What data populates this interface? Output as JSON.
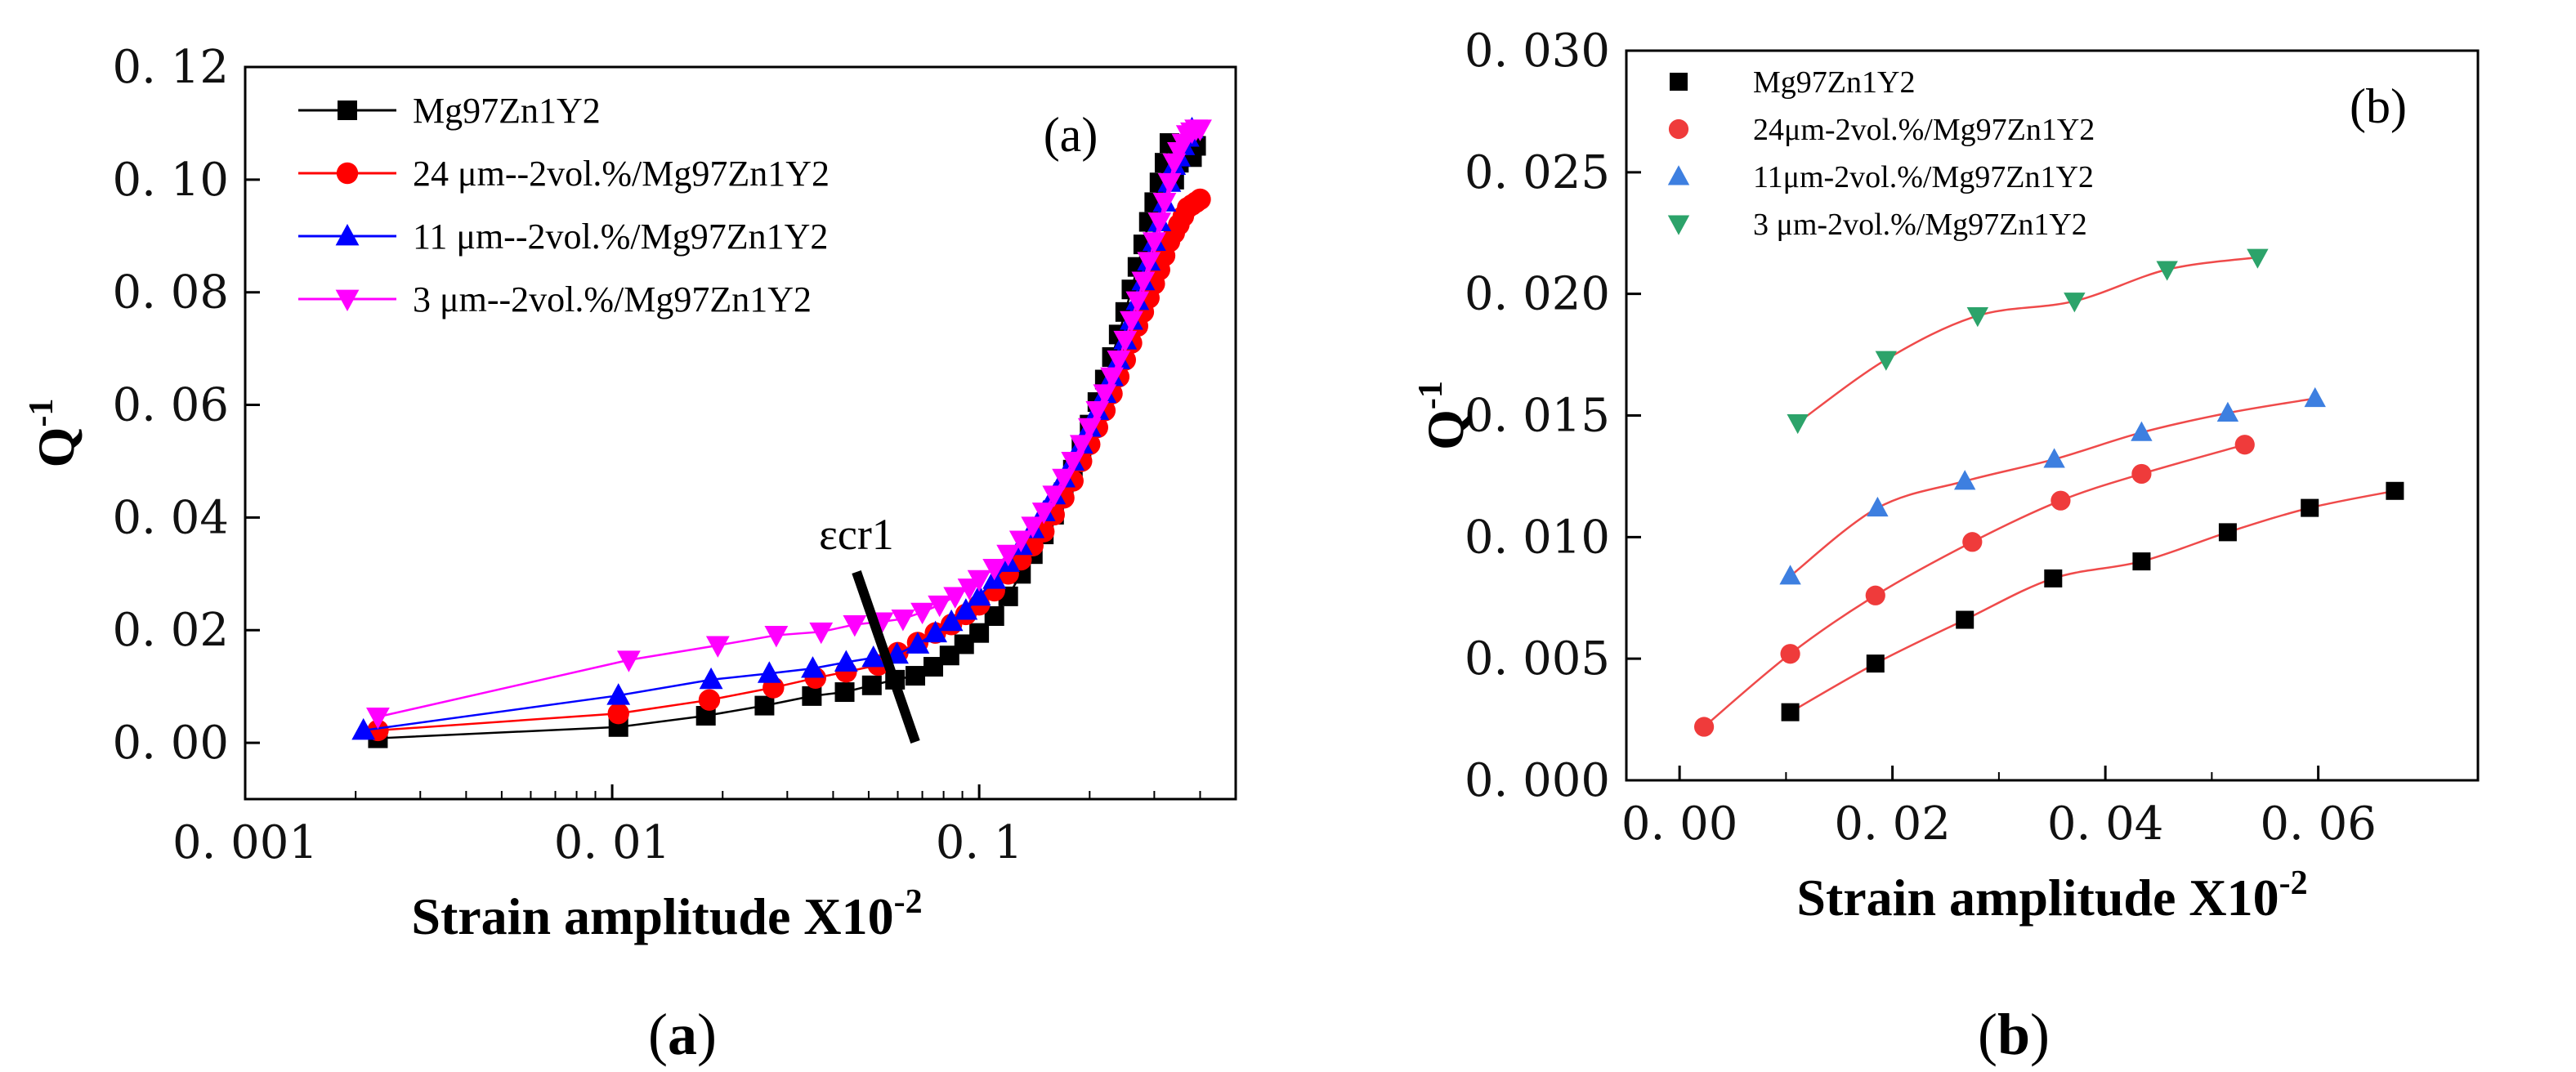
{
  "chart_data": [
    {
      "type": "line",
      "panel_label": "(a)",
      "caption_parts": [
        "(",
        "a",
        ")"
      ],
      "xlabel": "Strain amplitude X10",
      "xlabel_sup": "-2",
      "ylabel": "Q",
      "ylabel_sup": "-1",
      "xscale": "log",
      "xlim": [
        0.001,
        0.5
      ],
      "ylim": [
        -0.01,
        0.12
      ],
      "x_ticks": [
        0.001,
        0.01,
        0.1
      ],
      "x_tick_labels": [
        "0. 001",
        "0. 01",
        "0. 1"
      ],
      "y_ticks": [
        0.0,
        0.02,
        0.04,
        0.06,
        0.08,
        0.1,
        0.12
      ],
      "y_tick_labels": [
        "0. 00",
        "0. 02",
        "0. 04",
        "0. 06",
        "0. 08",
        "0. 10",
        "0. 12"
      ],
      "legend_position": "top-left",
      "annotation": {
        "text": "εcr1",
        "x": 0.058,
        "y": 0.02
      },
      "series": [
        {
          "name": "Mg97Zn1Y2",
          "color": "#000000",
          "marker": "square",
          "x": [
            0.0023,
            0.0104,
            0.018,
            0.026,
            0.035,
            0.043,
            0.051,
            0.059,
            0.067,
            0.075,
            0.083,
            0.091,
            0.1,
            0.11,
            0.12,
            0.13,
            0.14,
            0.15,
            0.16,
            0.17,
            0.18,
            0.19,
            0.2,
            0.21,
            0.22,
            0.23,
            0.24,
            0.25,
            0.26,
            0.27,
            0.28,
            0.29,
            0.3,
            0.31,
            0.32,
            0.33,
            0.34,
            0.35,
            0.36,
            0.37,
            0.38,
            0.39
          ],
          "y": [
            0.0008,
            0.0028,
            0.0048,
            0.0066,
            0.0083,
            0.009,
            0.0102,
            0.0112,
            0.0119,
            0.0135,
            0.0155,
            0.0175,
            0.0195,
            0.0225,
            0.026,
            0.03,
            0.0335,
            0.037,
            0.0405,
            0.0445,
            0.0485,
            0.0525,
            0.0565,
            0.0605,
            0.0645,
            0.0685,
            0.0725,
            0.0765,
            0.0805,
            0.0845,
            0.0885,
            0.0925,
            0.096,
            0.0995,
            0.103,
            0.1065,
            0.1,
            0.103,
            0.106,
            0.1055,
            0.104,
            0.106
          ]
        },
        {
          "name": "24 μm--2vol.%/Mg97Zn1Y2",
          "color": "#ff0000",
          "marker": "circle",
          "x": [
            0.0023,
            0.0104,
            0.0184,
            0.0275,
            0.0358,
            0.0434,
            0.0531,
            0.06,
            0.068,
            0.076,
            0.084,
            0.092,
            0.1,
            0.11,
            0.12,
            0.13,
            0.14,
            0.15,
            0.16,
            0.17,
            0.18,
            0.19,
            0.2,
            0.21,
            0.22,
            0.23,
            0.24,
            0.25,
            0.26,
            0.27,
            0.28,
            0.29,
            0.3,
            0.31,
            0.32,
            0.33,
            0.34,
            0.35,
            0.36,
            0.37,
            0.38,
            0.39,
            0.4
          ],
          "y": [
            0.0022,
            0.0052,
            0.0076,
            0.0098,
            0.0115,
            0.0126,
            0.0138,
            0.016,
            0.0178,
            0.0195,
            0.021,
            0.0228,
            0.0245,
            0.027,
            0.03,
            0.0325,
            0.035,
            0.0375,
            0.0405,
            0.0435,
            0.0465,
            0.05,
            0.053,
            0.056,
            0.059,
            0.062,
            0.065,
            0.068,
            0.071,
            0.074,
            0.0765,
            0.079,
            0.0815,
            0.084,
            0.0865,
            0.089,
            0.0905,
            0.092,
            0.0935,
            0.095,
            0.0955,
            0.096,
            0.0965
          ]
        },
        {
          "name": "11 μm--2vol.%/Mg97Zn1Y2",
          "color": "#0000ff",
          "marker": "triangle-up",
          "x": [
            0.0021,
            0.0104,
            0.0186,
            0.0268,
            0.0352,
            0.0434,
            0.0515,
            0.0597,
            0.068,
            0.076,
            0.084,
            0.092,
            0.1,
            0.11,
            0.12,
            0.13,
            0.14,
            0.15,
            0.16,
            0.17,
            0.18,
            0.19,
            0.2,
            0.21,
            0.22,
            0.23,
            0.24,
            0.25,
            0.26,
            0.27,
            0.28,
            0.29,
            0.3,
            0.31,
            0.32,
            0.33,
            0.34,
            0.35,
            0.36,
            0.37,
            0.38
          ],
          "y": [
            0.0022,
            0.0084,
            0.0112,
            0.0123,
            0.0132,
            0.0143,
            0.0151,
            0.0157,
            0.0175,
            0.0195,
            0.0215,
            0.0235,
            0.026,
            0.029,
            0.032,
            0.035,
            0.038,
            0.041,
            0.044,
            0.047,
            0.05,
            0.053,
            0.056,
            0.059,
            0.062,
            0.065,
            0.068,
            0.0715,
            0.075,
            0.0785,
            0.082,
            0.0855,
            0.089,
            0.0925,
            0.096,
            0.0995,
            0.1025,
            0.104,
            0.106,
            0.1075,
            0.109
          ]
        },
        {
          "name": "3   μm--2vol.%/Mg97Zn1Y2",
          "color": "#ff00ff",
          "marker": "triangle-down",
          "x": [
            0.0023,
            0.0111,
            0.0194,
            0.028,
            0.0371,
            0.0458,
            0.0543,
            0.062,
            0.07,
            0.078,
            0.086,
            0.094,
            0.1,
            0.11,
            0.12,
            0.13,
            0.14,
            0.15,
            0.16,
            0.17,
            0.18,
            0.19,
            0.2,
            0.21,
            0.22,
            0.23,
            0.24,
            0.25,
            0.26,
            0.27,
            0.28,
            0.29,
            0.3,
            0.31,
            0.32,
            0.33,
            0.34,
            0.35,
            0.36,
            0.37,
            0.38,
            0.39,
            0.4
          ],
          "y": [
            0.0046,
            0.0147,
            0.0173,
            0.0191,
            0.0197,
            0.021,
            0.0215,
            0.022,
            0.0232,
            0.0245,
            0.026,
            0.0275,
            0.029,
            0.031,
            0.0335,
            0.036,
            0.0385,
            0.041,
            0.044,
            0.047,
            0.05,
            0.053,
            0.056,
            0.059,
            0.062,
            0.065,
            0.068,
            0.0715,
            0.075,
            0.0785,
            0.082,
            0.0855,
            0.089,
            0.0925,
            0.096,
            0.0995,
            0.103,
            0.105,
            0.1065,
            0.108,
            0.1085,
            0.109,
            0.109
          ]
        }
      ]
    },
    {
      "type": "scatter",
      "panel_label": "(b)",
      "caption_parts": [
        "(",
        "b",
        ")"
      ],
      "xlabel": "Strain amplitude X10",
      "xlabel_sup": "-2",
      "ylabel": "Q",
      "ylabel_sup": "-1",
      "xlim": [
        -0.005,
        0.075
      ],
      "ylim": [
        0.0,
        0.03
      ],
      "x_ticks": [
        0.0,
        0.02,
        0.04,
        0.06
      ],
      "x_tick_labels": [
        "0. 00",
        "0. 02",
        "0. 04",
        "0. 06"
      ],
      "y_ticks": [
        0.0,
        0.005,
        0.01,
        0.015,
        0.02,
        0.025,
        0.03
      ],
      "y_tick_labels": [
        "0. 000",
        "0. 005",
        "0. 010",
        "0. 015",
        "0. 020",
        "0. 025",
        "0. 030"
      ],
      "legend_position": "top-left",
      "series": [
        {
          "name": "Mg97Zn1Y2",
          "color": "#000000",
          "marker": "square",
          "x": [
            0.0104,
            0.0184,
            0.0268,
            0.0351,
            0.0434,
            0.0515,
            0.0592,
            0.0672
          ],
          "y": [
            0.0028,
            0.0048,
            0.0066,
            0.0083,
            0.009,
            0.0102,
            0.0112,
            0.0119
          ]
        },
        {
          "name": "24μm-2vol.%/Mg97Zn1Y2",
          "color": "#ef3b3b",
          "marker": "circle",
          "x": [
            0.0023,
            0.0104,
            0.0184,
            0.0275,
            0.0358,
            0.0434,
            0.0531
          ],
          "y": [
            0.0022,
            0.0052,
            0.0076,
            0.0098,
            0.0115,
            0.0126,
            0.0138
          ]
        },
        {
          "name": "11μm-2vol.%/Mg97Zn1Y2",
          "color": "#3d7fe0",
          "marker": "triangle-up",
          "x": [
            0.0104,
            0.0186,
            0.0268,
            0.0352,
            0.0434,
            0.0515,
            0.0597
          ],
          "y": [
            0.0084,
            0.0112,
            0.0123,
            0.0132,
            0.0143,
            0.0151,
            0.0157
          ]
        },
        {
          "name": "3  μm-2vol.%/Mg97Zn1Y2",
          "color": "#2ca36a",
          "marker": "triangle-down",
          "x": [
            0.0111,
            0.0194,
            0.028,
            0.0371,
            0.0458,
            0.0543
          ],
          "y": [
            0.0147,
            0.0173,
            0.0191,
            0.0197,
            0.021,
            0.0215
          ]
        }
      ]
    }
  ]
}
